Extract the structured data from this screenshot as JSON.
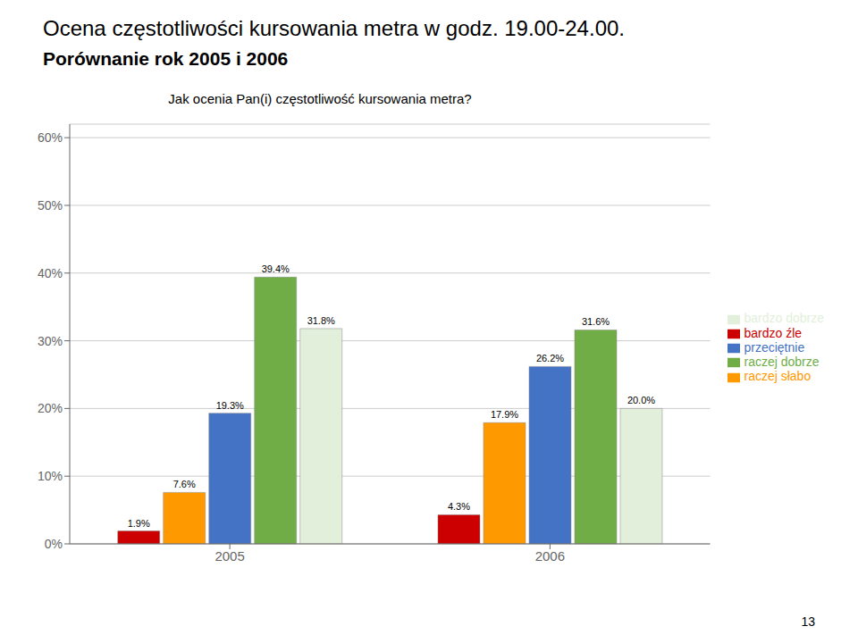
{
  "chart_data": {
    "type": "bar",
    "title": "Ocena częstotliwości kursowania metra w godz. 19.00-24.00.",
    "subtitle": "Porównanie rok 2005 i 2006",
    "annotations": [
      "Jak ocenia Pan(i) częstotliwość kursowania metra?",
      "13"
    ],
    "categories": [
      "2005",
      "2006"
    ],
    "series": [
      {
        "name": "bardzo źle",
        "color": "#CC0000",
        "values": [
          1.9,
          4.3
        ],
        "value_labels": [
          "1.9%",
          "4.3%"
        ]
      },
      {
        "name": "raczej słabo",
        "color": "#FF9900",
        "values": [
          7.6,
          17.9
        ],
        "value_labels": [
          "7.6%",
          "17.9%"
        ]
      },
      {
        "name": "przeciętnie",
        "color": "#4472C4",
        "values": [
          19.3,
          26.2
        ],
        "value_labels": [
          "19.3%",
          "26.2%"
        ]
      },
      {
        "name": "raczej dobrze",
        "color": "#70AD47",
        "values": [
          39.4,
          31.6
        ],
        "value_labels": [
          "39.4%",
          "31.6%"
        ]
      },
      {
        "name": "bardzo dobrze",
        "color": "#E2EFDA",
        "values": [
          31.8,
          20.0
        ],
        "value_labels": [
          "31.8%",
          "20.0%"
        ]
      }
    ],
    "ylim": [
      0,
      62
    ],
    "yticks": [
      {
        "value": 0,
        "label": "0%"
      },
      {
        "value": 10,
        "label": "10%"
      },
      {
        "value": 20,
        "label": "20%"
      },
      {
        "value": 30,
        "label": "30%"
      },
      {
        "value": 40,
        "label": "40%"
      },
      {
        "value": 50,
        "label": "50%"
      },
      {
        "value": 60,
        "label": "60%"
      }
    ],
    "grid": true,
    "legend": "right",
    "data_labels": true
  }
}
